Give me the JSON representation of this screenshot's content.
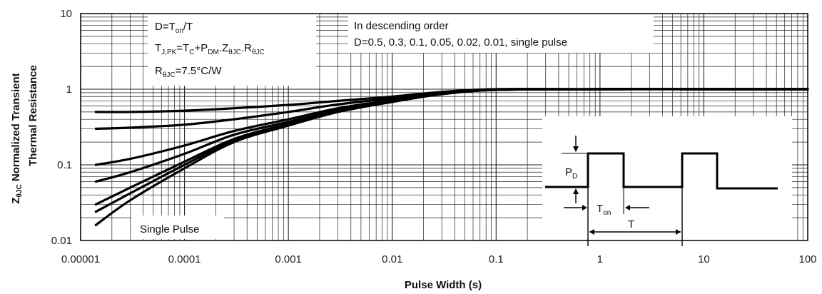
{
  "chart_data": {
    "type": "line",
    "title": "",
    "xlabel": "Pulse Width (s)",
    "ylabel_main": "Normalized Transient",
    "ylabel_line2": "Thermal Resistance",
    "ylabel_symbol": "Z",
    "ylabel_symbol_sub": "θJC",
    "x_scale": "log",
    "y_scale": "log",
    "xlim": [
      1e-05,
      100
    ],
    "ylim": [
      0.01,
      10
    ],
    "grid": true,
    "x_ticks": [
      {
        "value": 1e-05,
        "label": "0.00001"
      },
      {
        "value": 0.0001,
        "label": "0.0001"
      },
      {
        "value": 0.001,
        "label": "0.001"
      },
      {
        "value": 0.01,
        "label": "0.01"
      },
      {
        "value": 0.1,
        "label": "0.1"
      },
      {
        "value": 1,
        "label": "1"
      },
      {
        "value": 10,
        "label": "10"
      },
      {
        "value": 100,
        "label": "100"
      }
    ],
    "y_ticks": [
      {
        "value": 0.01,
        "label": "0.01"
      },
      {
        "value": 0.1,
        "label": "0.1"
      },
      {
        "value": 1,
        "label": "1"
      },
      {
        "value": 10,
        "label": "10"
      }
    ],
    "series": [
      {
        "x": [
          1.4e-05,
          3e-05,
          0.0001,
          0.0003,
          0.001,
          0.003,
          0.01,
          0.03,
          0.1,
          1,
          10,
          100
        ],
        "y": [
          0.5,
          0.5,
          0.52,
          0.56,
          0.62,
          0.7,
          0.8,
          0.92,
          1.0,
          1.0,
          1.0,
          1.0
        ]
      },
      {
        "x": [
          1.4e-05,
          3e-05,
          0.0001,
          0.0003,
          0.001,
          0.003,
          0.01,
          0.03,
          0.1,
          1,
          10,
          100
        ],
        "y": [
          0.3,
          0.31,
          0.34,
          0.4,
          0.5,
          0.63,
          0.76,
          0.9,
          1.0,
          1.0,
          1.0,
          1.0
        ]
      },
      {
        "x": [
          1.4e-05,
          3e-05,
          0.0001,
          0.0003,
          0.001,
          0.003,
          0.01,
          0.03,
          0.1,
          1,
          10,
          100
        ],
        "y": [
          0.1,
          0.12,
          0.18,
          0.28,
          0.4,
          0.56,
          0.72,
          0.88,
          0.98,
          1.0,
          1.0,
          1.0
        ]
      },
      {
        "x": [
          1.4e-05,
          3e-05,
          0.0001,
          0.0003,
          0.001,
          0.003,
          0.01,
          0.03,
          0.1,
          1,
          10,
          100
        ],
        "y": [
          0.06,
          0.08,
          0.14,
          0.25,
          0.37,
          0.53,
          0.7,
          0.87,
          0.98,
          1.0,
          1.0,
          1.0
        ]
      },
      {
        "x": [
          1.4e-05,
          3e-05,
          0.0001,
          0.0003,
          0.001,
          0.003,
          0.01,
          0.03,
          0.1,
          1,
          10,
          100
        ],
        "y": [
          0.03,
          0.05,
          0.11,
          0.22,
          0.35,
          0.52,
          0.69,
          0.86,
          0.98,
          1.0,
          1.0,
          1.0
        ]
      },
      {
        "x": [
          1.4e-05,
          3e-05,
          0.0001,
          0.0003,
          0.001,
          0.003,
          0.01,
          0.03,
          0.1,
          1,
          10,
          100
        ],
        "y": [
          0.024,
          0.042,
          0.1,
          0.21,
          0.34,
          0.51,
          0.68,
          0.86,
          0.98,
          1.0,
          1.0,
          1.0
        ]
      },
      {
        "x": [
          1.4e-05,
          3e-05,
          0.0001,
          0.0003,
          0.001,
          0.003,
          0.01,
          0.03,
          0.1,
          1,
          10,
          100
        ],
        "y": [
          0.016,
          0.034,
          0.09,
          0.2,
          0.33,
          0.5,
          0.68,
          0.86,
          0.98,
          1.0,
          1.0,
          1.0
        ]
      }
    ],
    "annotations": {
      "box1_line1": "D=T",
      "box1_line1_sub": "on",
      "box1_line1_tail": "/T",
      "box1_line2_parts": [
        "T",
        "J,PK",
        "=T",
        "C",
        "+P",
        "DM",
        ".Z",
        "θJC",
        ".R",
        "θJC"
      ],
      "box1_line3_parts": [
        "R",
        "θJC",
        "=7.5°C/W"
      ],
      "box2_line1": "In descending order",
      "box2_line2": "D=0.5, 0.3, 0.1, 0.05, 0.02, 0.01, single pulse",
      "single_pulse_label": "Single Pulse",
      "inset_pd": "P",
      "inset_pd_sub": "D",
      "inset_ton": "T",
      "inset_ton_sub": "on",
      "inset_t": "T"
    }
  }
}
